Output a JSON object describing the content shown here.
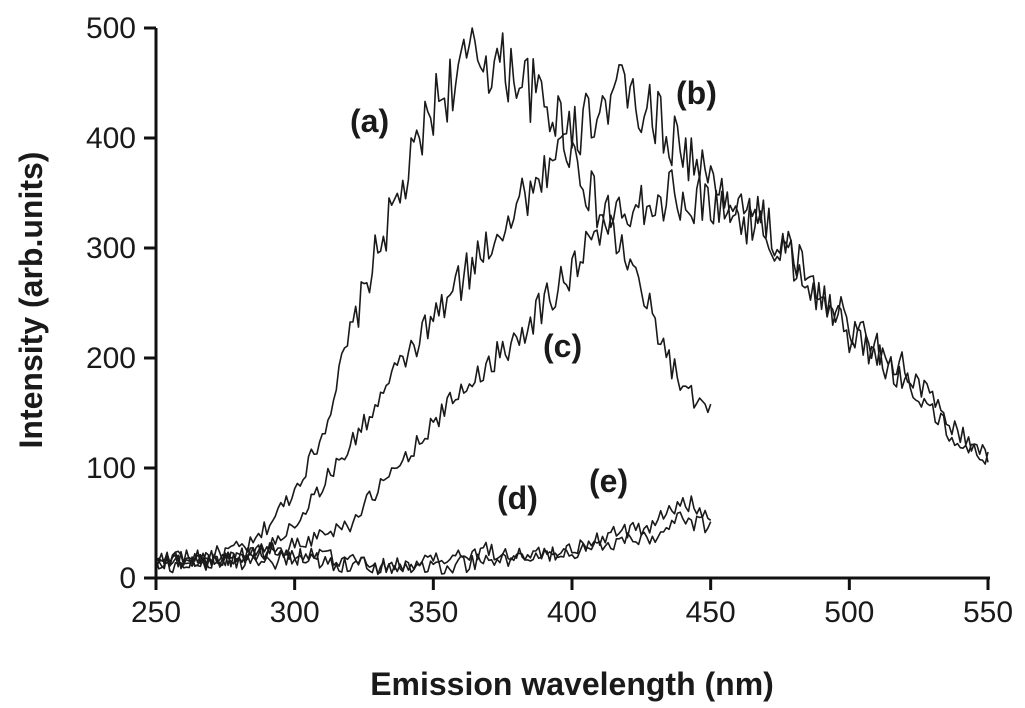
{
  "chart_data": {
    "type": "line",
    "xlabel": "Emission wavelength (nm)",
    "ylabel": "Intensity (arb.units)",
    "xlim": [
      250,
      550
    ],
    "ylim": [
      0,
      500
    ],
    "xticks": [
      250,
      300,
      350,
      400,
      450,
      500,
      550
    ],
    "yticks": [
      0,
      100,
      200,
      300,
      400,
      500
    ],
    "grid": false,
    "line_color": "#1a1a1a",
    "series": [
      {
        "name": "(a)",
        "x": [
          250,
          270,
          285,
          300,
          310,
          320,
          330,
          340,
          350,
          360,
          365,
          370,
          380,
          390,
          395,
          400,
          410,
          420,
          430,
          440,
          450
        ],
        "y": [
          15,
          20,
          30,
          80,
          130,
          220,
          300,
          360,
          430,
          460,
          480,
          470,
          460,
          430,
          420,
          390,
          330,
          290,
          230,
          170,
          150
        ]
      },
      {
        "name": "(b)",
        "x": [
          250,
          270,
          290,
          300,
          320,
          340,
          360,
          380,
          400,
          410,
          420,
          430,
          440,
          450,
          460,
          470,
          480,
          500,
          520,
          540,
          550
        ],
        "y": [
          15,
          15,
          25,
          50,
          120,
          200,
          270,
          340,
          400,
          430,
          440,
          420,
          390,
          360,
          340,
          320,
          290,
          230,
          190,
          130,
          110
        ]
      },
      {
        "name": "(c)",
        "x": [
          250,
          280,
          300,
          320,
          340,
          360,
          380,
          400,
          410,
          420,
          440,
          460,
          480,
          500,
          520,
          540,
          550
        ],
        "y": [
          15,
          20,
          30,
          50,
          110,
          170,
          220,
          280,
          320,
          340,
          350,
          330,
          290,
          220,
          180,
          120,
          110
        ]
      },
      {
        "name": "(d)",
        "x": [
          250,
          270,
          290,
          310,
          330,
          350,
          370,
          390,
          410,
          430,
          440,
          450
        ],
        "y": [
          20,
          15,
          15,
          20,
          10,
          15,
          25,
          20,
          30,
          40,
          55,
          45
        ]
      },
      {
        "name": "(e)",
        "x": [
          250,
          270,
          290,
          310,
          330,
          350,
          370,
          390,
          410,
          430,
          440,
          450
        ],
        "y": [
          10,
          15,
          25,
          15,
          10,
          10,
          15,
          20,
          35,
          50,
          70,
          60
        ]
      }
    ],
    "annotations": [
      "(a)",
      "(b)",
      "(c)",
      "(d)",
      "(e)"
    ]
  }
}
